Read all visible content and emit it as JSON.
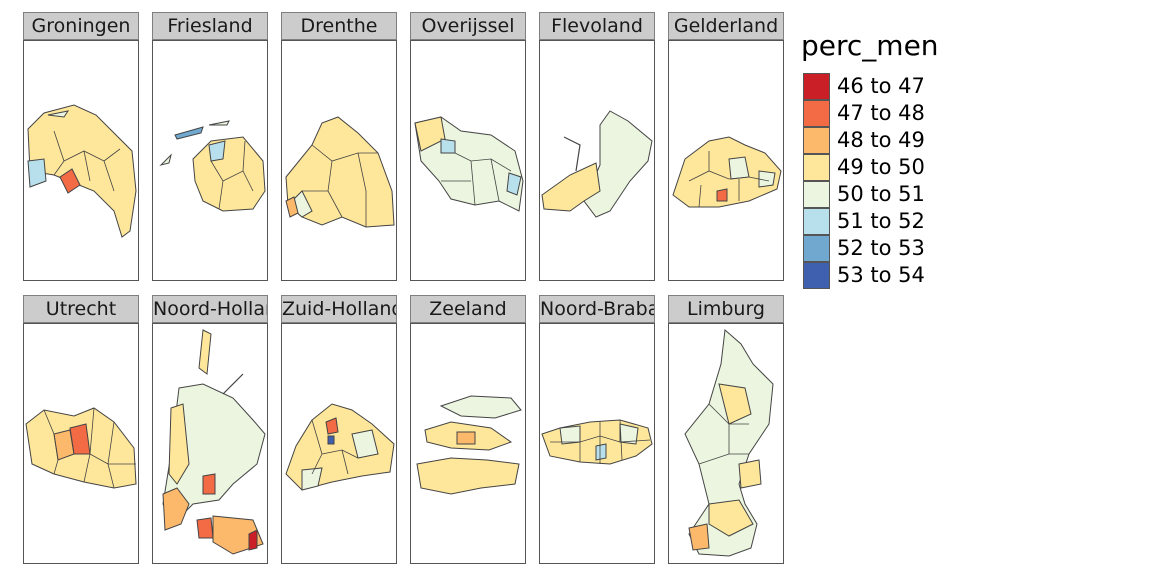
{
  "legend": {
    "title": "perc_men",
    "items": [
      {
        "label": "46 to 47",
        "color": "#cb1f27"
      },
      {
        "label": "47 to 48",
        "color": "#f36b45"
      },
      {
        "label": "48 to 49",
        "color": "#fdb96b"
      },
      {
        "label": "49 to 50",
        "color": "#fee79a"
      },
      {
        "label": "50 to 51",
        "color": "#ebf5df"
      },
      {
        "label": "51 to 52",
        "color": "#b7e0ec"
      },
      {
        "label": "52 to 53",
        "color": "#70a8d0"
      },
      {
        "label": "53 to 54",
        "color": "#3f5faf"
      }
    ]
  },
  "panels": [
    {
      "name": "Groningen",
      "fill": "#fee79a",
      "accents": [
        "#b7e0ec",
        "#f36b45"
      ]
    },
    {
      "name": "Friesland",
      "fill": "#fee79a",
      "accents": [
        "#70a8d0",
        "#b7e0ec"
      ]
    },
    {
      "name": "Drenthe",
      "fill": "#fee79a",
      "accents": [
        "#ebf5df",
        "#fdb96b"
      ]
    },
    {
      "name": "Overijssel",
      "fill": "#ebf5df",
      "accents": [
        "#fee79a",
        "#b7e0ec"
      ]
    },
    {
      "name": "Flevoland",
      "fill": "#fee79a",
      "accents": [
        "#ebf5df"
      ]
    },
    {
      "name": "Gelderland",
      "fill": "#fee79a",
      "accents": [
        "#ebf5df",
        "#f36b45"
      ]
    },
    {
      "name": "Utrecht",
      "fill": "#fee79a",
      "accents": [
        "#fdb96b",
        "#f36b45"
      ]
    },
    {
      "name": "Noord-Holland",
      "fill": "#ebf5df",
      "accents": [
        "#fdb96b",
        "#f36b45",
        "#cb1f27"
      ]
    },
    {
      "name": "Zuid-Holland",
      "fill": "#fee79a",
      "accents": [
        "#ebf5df",
        "#f36b45",
        "#3f5faf"
      ]
    },
    {
      "name": "Zeeland",
      "fill": "#fee79a",
      "accents": [
        "#ebf5df",
        "#fdb96b"
      ]
    },
    {
      "name": "Noord-Brabant",
      "fill": "#fee79a",
      "accents": [
        "#ebf5df",
        "#b7e0ec",
        "#fdb96b"
      ]
    },
    {
      "name": "Limburg",
      "fill": "#ebf5df",
      "accents": [
        "#fee79a",
        "#fdb96b"
      ]
    }
  ]
}
